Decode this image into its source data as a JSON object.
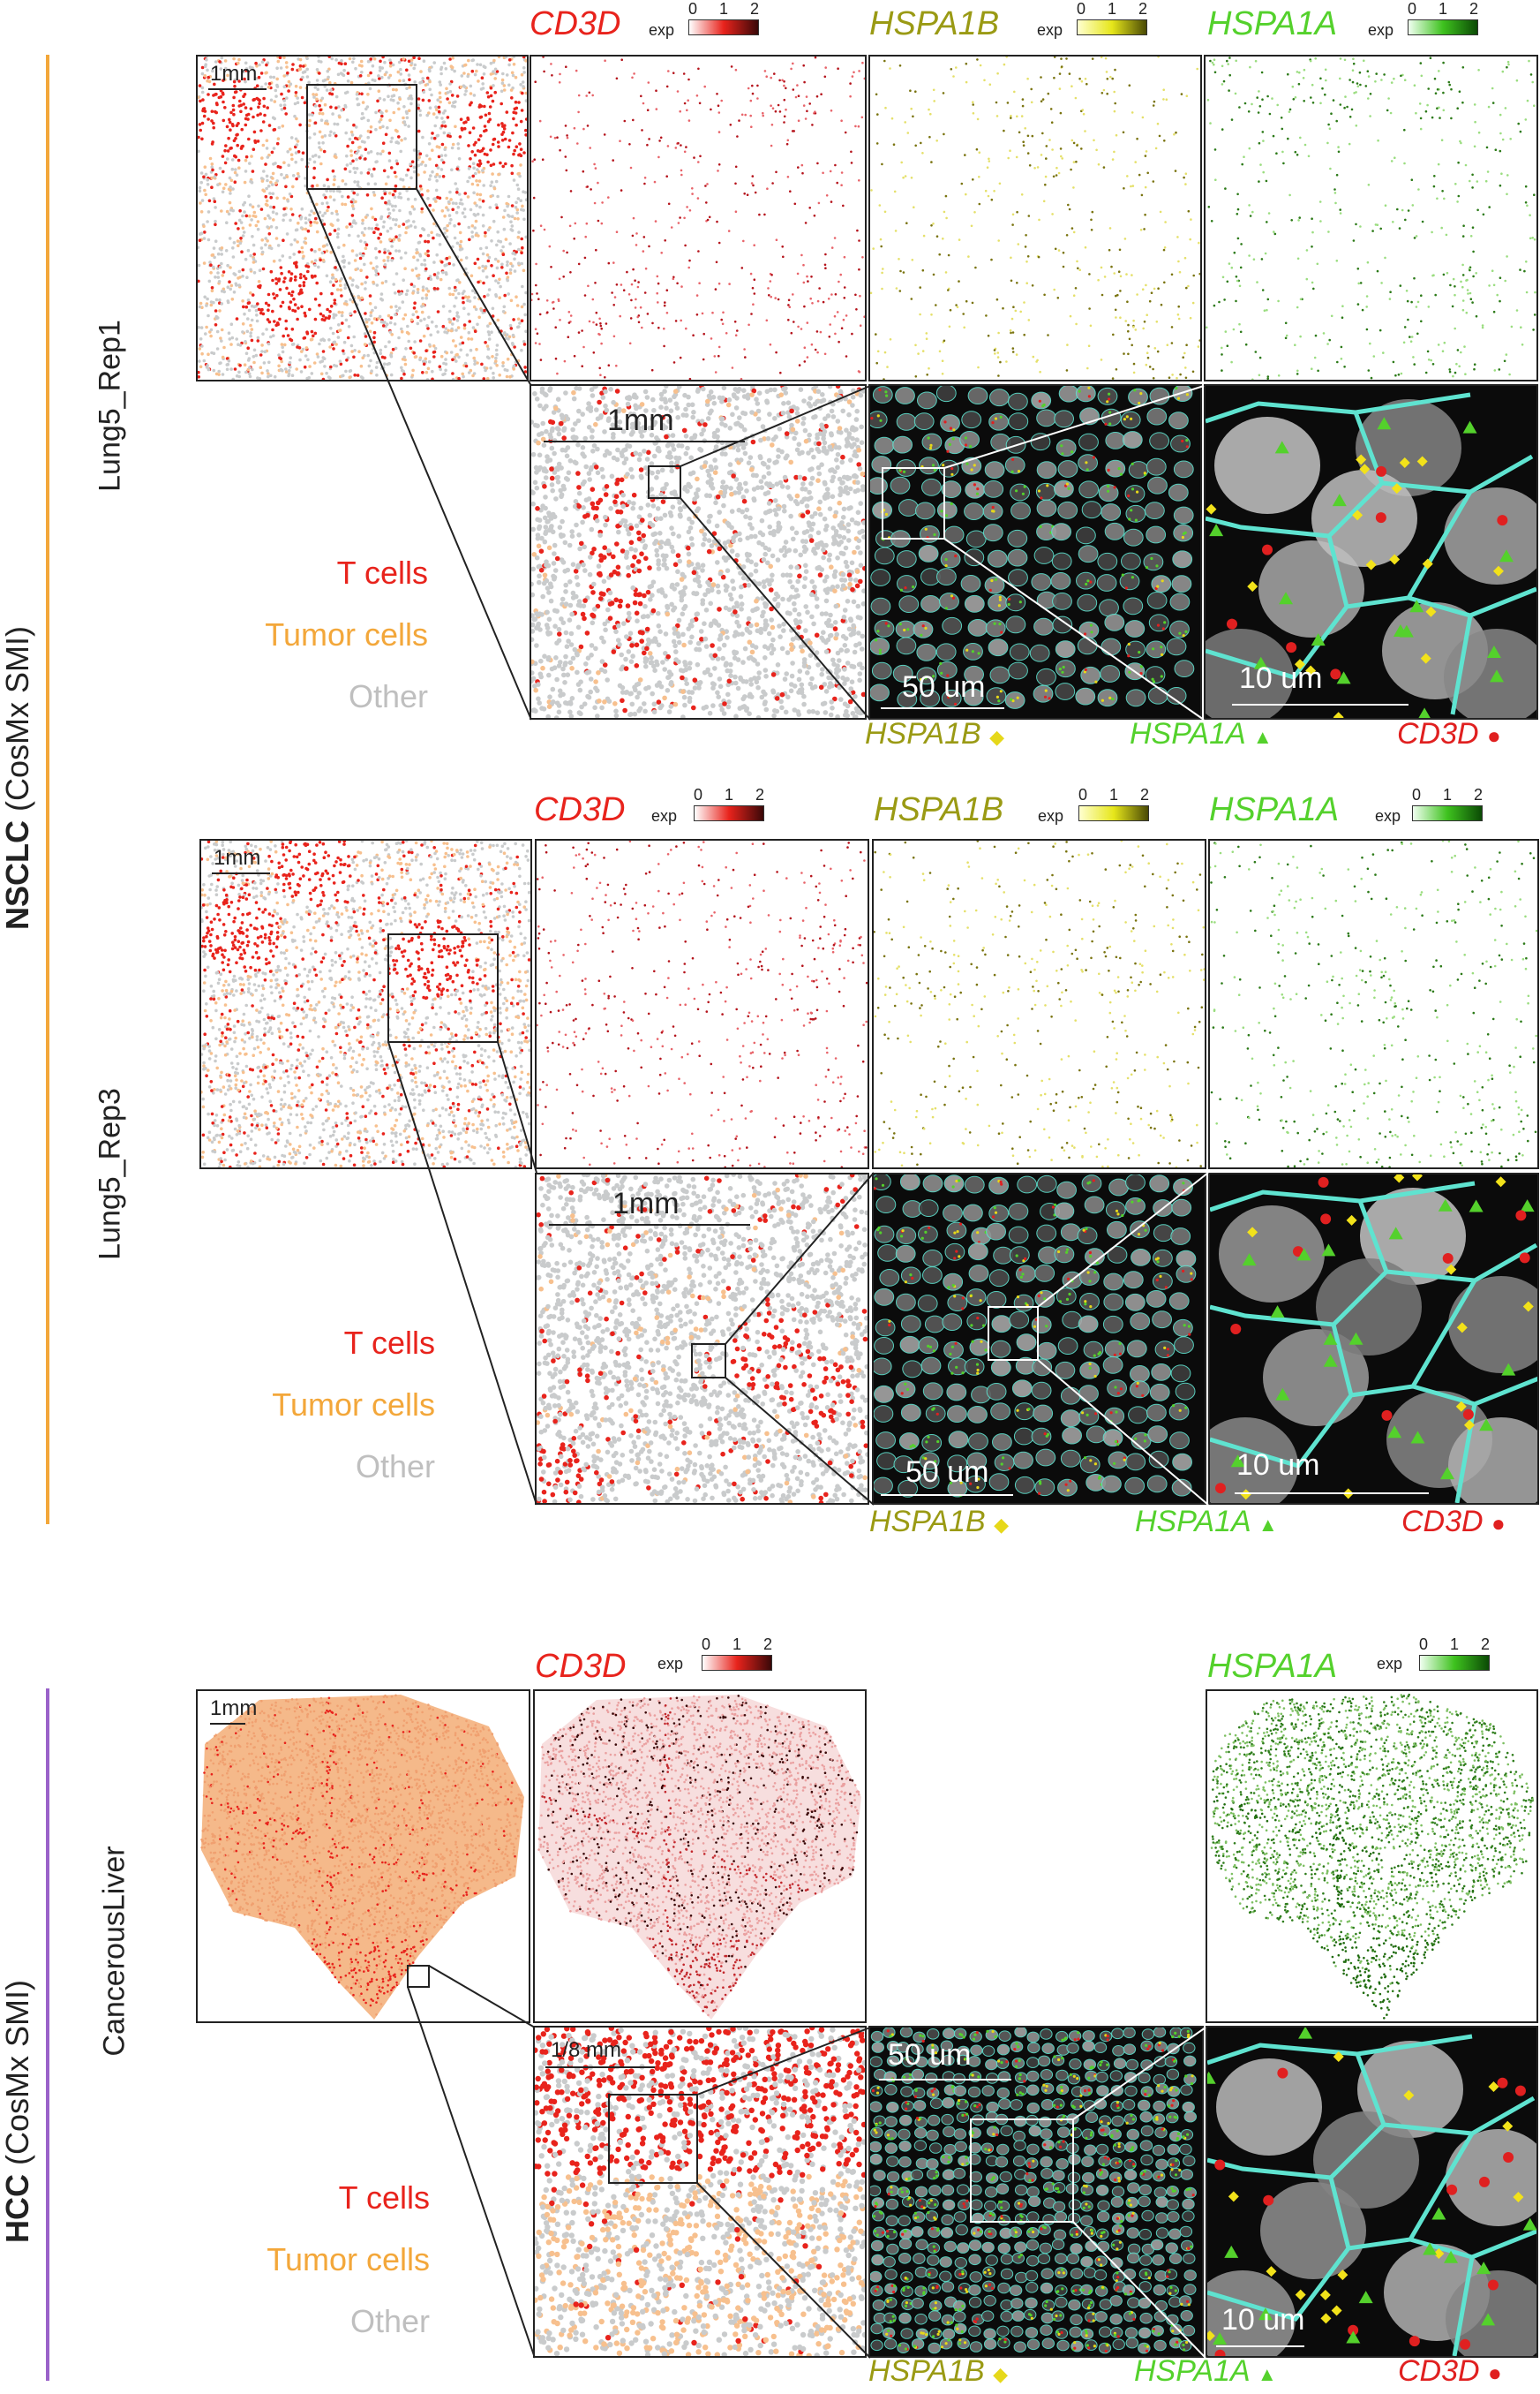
{
  "groups": [
    {
      "id": "nsclc",
      "bold": "NSCLC",
      "rest": " (CosMx SMI)",
      "color": "#f3a73a"
    },
    {
      "id": "hcc",
      "bold": "HCC",
      "rest": " (CosMx SMI)",
      "color": "#9a62c9"
    }
  ],
  "samples": [
    "Lung5_Rep1",
    "Lung5_Rep3",
    "CancerousLiver"
  ],
  "genes": {
    "cd3d": "CD3D",
    "hspa1b": "HSPA1B",
    "hspa1a": "HSPA1A"
  },
  "exp_label": "exp",
  "ticks": [
    "0",
    "1",
    "2"
  ],
  "celltypes": {
    "t": "T cells",
    "tumor": "Tumor cells",
    "other": "Other"
  },
  "scales": {
    "mm1": "1mm",
    "mm18": "1/8 mm",
    "um50": "50 um",
    "um10": "10 um"
  },
  "markers": {
    "hspa1b": "HSPA1B",
    "hspa1a": "HSPA1A",
    "cd3d": "CD3D",
    "diamond": "◆",
    "triangle": "▲",
    "circle": "●"
  },
  "colors": {
    "tcell": "#e8231c",
    "tumor": "#f7c08e",
    "other": "#c9cbcc",
    "hspa1b": "#8a8a12",
    "hspa1a": "#54d12c",
    "cd3d": "#e02020",
    "cyan": "#5fe3d0"
  }
}
